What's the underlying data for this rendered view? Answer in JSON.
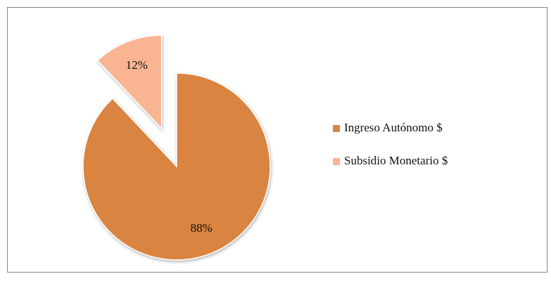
{
  "chart_data": {
    "type": "pie",
    "categories": [
      "Ingreso Autónomo $",
      "Subsidio Monetario $"
    ],
    "values": [
      88,
      12
    ],
    "value_labels": [
      "88%",
      "12%"
    ],
    "colors": [
      "#d9843f",
      "#f9b592"
    ],
    "exploded": [
      false,
      true
    ],
    "legend": "right"
  }
}
